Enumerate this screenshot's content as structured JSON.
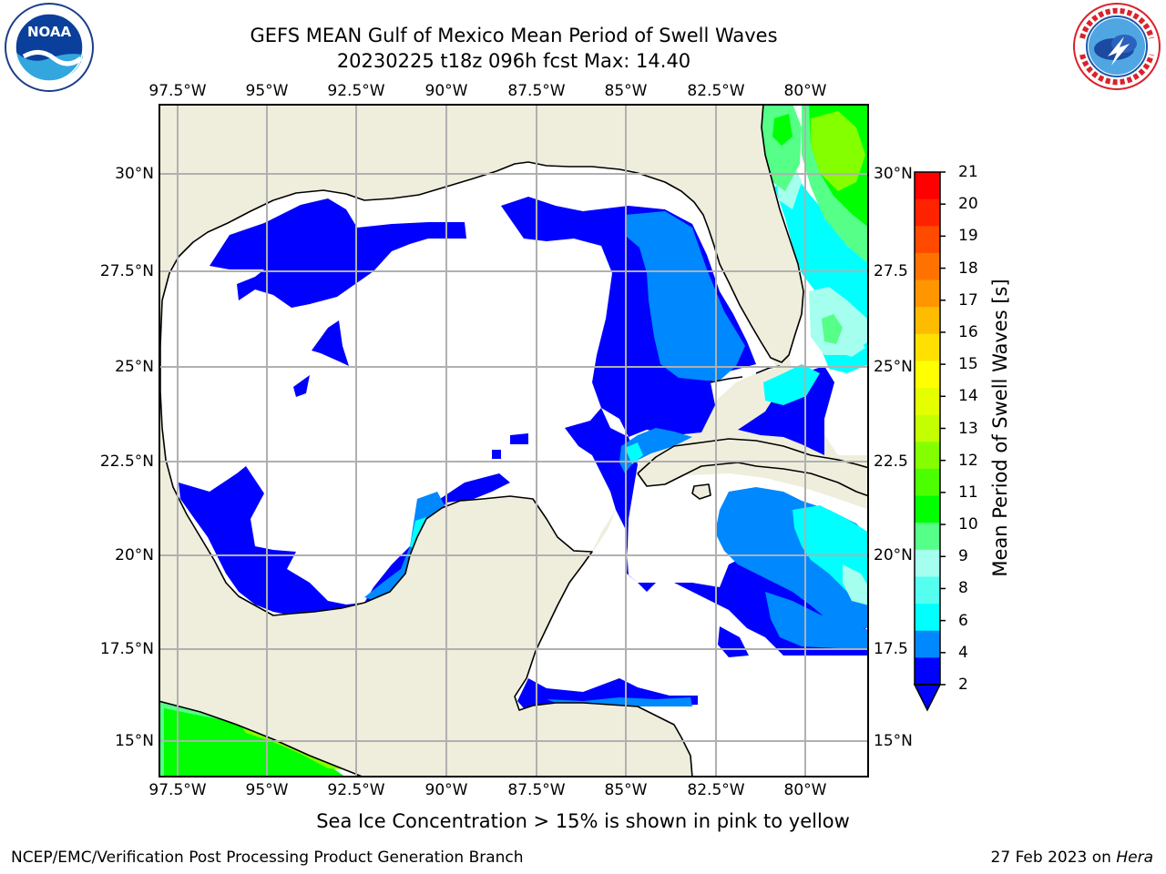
{
  "header": {
    "title_line1": "GEFS MEAN Gulf of Mexico Mean Period of Swell Waves",
    "title_line2": "20230225 t18z 096h fcst   Max: 14.40"
  },
  "logos": {
    "left": "noaa-logo",
    "right": "national-weather-service-logo"
  },
  "map": {
    "lon_labels": [
      "97.5°W",
      "95°W",
      "92.5°W",
      "90°W",
      "87.5°W",
      "85°W",
      "82.5°W",
      "80°W"
    ],
    "lat_labels_left": [
      "30°N",
      "27.5°N",
      "25°N",
      "22.5°N",
      "20°N",
      "17.5°N",
      "15°N"
    ],
    "lat_labels_right": [
      "30°N",
      "27.5",
      "25°N",
      "22.5",
      "20°N",
      "17.5",
      "15°N"
    ],
    "colors": {
      "land": "#efeedc",
      "water": "#ffffff",
      "coastline": "#000000",
      "grid": "#b0b0b0"
    }
  },
  "colorbar": {
    "title": "Mean Period of Swell Waves [s]",
    "ticks": [
      "21",
      "20",
      "19",
      "18",
      "17",
      "16",
      "15",
      "14",
      "13",
      "12",
      "11",
      "10",
      "9",
      "8",
      "6",
      "4",
      "2"
    ],
    "colors_top_to_bottom": [
      "#ff0000",
      "#ff2200",
      "#ff4a00",
      "#ff7200",
      "#ff9600",
      "#ffbb00",
      "#ffe000",
      "#ffff00",
      "#e6ff00",
      "#c3ff00",
      "#84ff00",
      "#4cff00",
      "#00ff00",
      "#55ff88",
      "#a5ffee",
      "#55fff0",
      "#00ffff",
      "#0088ff",
      "#0000ff"
    ],
    "extend": "min"
  },
  "footnote": "Sea Ice Concentration > 15% is shown in pink to yellow",
  "credits": {
    "left": "NCEP/EMC/Verification Post Processing Product Generation Branch",
    "right_prefix": "27 Feb 2023 on",
    "right_host": "Hera"
  }
}
